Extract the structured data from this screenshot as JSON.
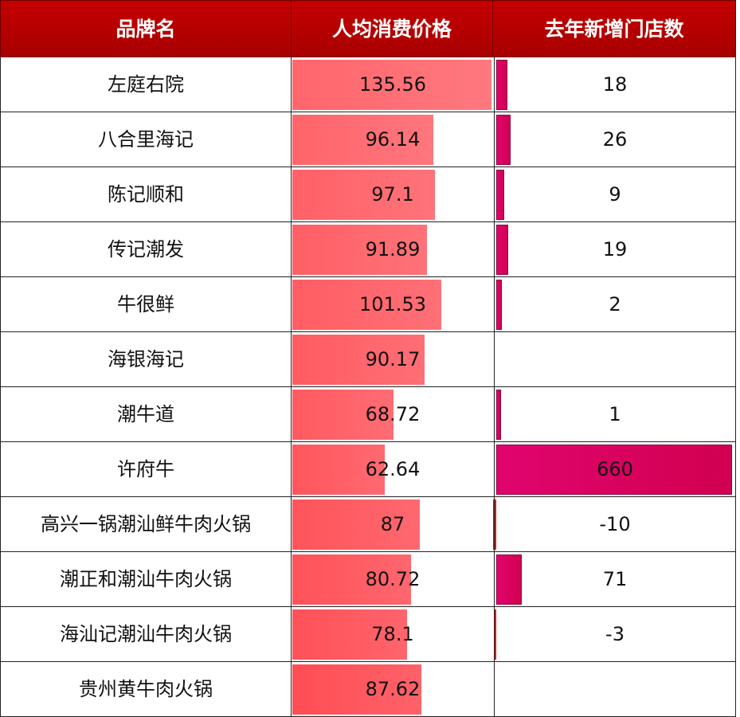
{
  "headers": [
    "品牌名",
    "人均消费价格",
    "去年新增门店数"
  ],
  "rows": [
    {
      "brand": "左庭右院",
      "price": "135.56",
      "stores": "18",
      "price_val": 135.56,
      "stores_val": 18
    },
    {
      "brand": "八合里海记",
      "price": "96.14",
      "stores": "26",
      "price_val": 96.14,
      "stores_val": 26
    },
    {
      "brand": "陈记顺和",
      "price": "97.1",
      "stores": "9",
      "price_val": 97.1,
      "stores_val": 9
    },
    {
      "brand": "传记潮发",
      "price": "91.89",
      "stores": "19",
      "price_val": 91.89,
      "stores_val": 19
    },
    {
      "brand": "牛很鲜",
      "price": "101.53",
      "stores": "2",
      "price_val": 101.53,
      "stores_val": 2
    },
    {
      "brand": "海银海记",
      "price": "90.17",
      "stores": "",
      "price_val": 90.17,
      "stores_val": null
    },
    {
      "brand": "潮牛道",
      "price": "68.72",
      "stores": "1",
      "price_val": 68.72,
      "stores_val": 1
    },
    {
      "brand": "许府牛",
      "price": "62.64",
      "stores": "660",
      "price_val": 62.64,
      "stores_val": 660
    },
    {
      "brand": "高兴一锅潮汕鲜牛肉火锅",
      "price": "87",
      "stores": "-10",
      "price_val": 87,
      "stores_val": -10
    },
    {
      "brand": "潮正和潮汕牛肉火锅",
      "price": "80.72",
      "stores": "71",
      "price_val": 80.72,
      "stores_val": 71
    },
    {
      "brand": "海汕记潮汕牛肉火锅",
      "price": "78.1",
      "stores": "-3",
      "price_val": 78.1,
      "stores_val": -3
    },
    {
      "brand": "贵州黄牛肉火锅",
      "price": "87.62",
      "stores": "",
      "price_val": 87.62,
      "stores_val": null
    }
  ],
  "colors": {
    "header": "#c40000",
    "price_bar": "#ff5a60",
    "store_bar": "#e0056e",
    "negative_bar": "#ff0000"
  }
}
